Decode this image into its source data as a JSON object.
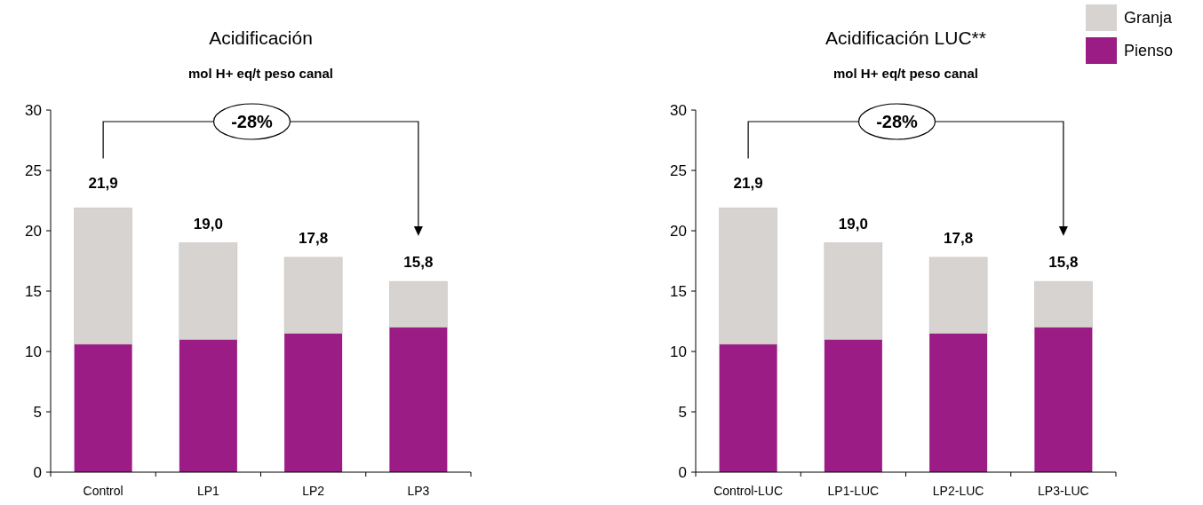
{
  "chart_data": [
    {
      "type": "bar",
      "title": "Acidificación",
      "subtitle": "mol H+ eq/t peso canal",
      "categories": [
        "Control",
        "LP1",
        "LP2",
        "LP3"
      ],
      "stacked": true,
      "series": [
        {
          "color": "#9b1c84",
          "values": [
            10.6,
            11.0,
            11.5,
            12.0
          ]
        },
        {
          "color": "#d6d3d0",
          "values": [
            11.3,
            8.0,
            6.3,
            3.8
          ]
        }
      ],
      "totals": [
        "21,9",
        "19,0",
        "17,8",
        "15,8"
      ],
      "ylim": [
        0,
        30
      ],
      "yticks": [
        0,
        5,
        10,
        15,
        20,
        25,
        30
      ],
      "grid": false,
      "legend": false,
      "annotations": [
        "-28%"
      ]
    },
    {
      "type": "bar",
      "title": "Acidificación LUC**",
      "subtitle": "mol H+ eq/t peso canal",
      "categories": [
        "Control-LUC",
        "LP1-LUC",
        "LP2-LUC",
        "LP3-LUC"
      ],
      "stacked": true,
      "series": [
        {
          "name": "Pienso",
          "color": "#9b1c84",
          "values": [
            10.6,
            11.0,
            11.5,
            12.0
          ]
        },
        {
          "name": "Granja",
          "color": "#d6d3d0",
          "values": [
            11.3,
            8.0,
            6.3,
            3.8
          ]
        }
      ],
      "totals": [
        "21,9",
        "19,0",
        "17,8",
        "15,8"
      ],
      "ylim": [
        0,
        30
      ],
      "yticks": [
        0,
        5,
        10,
        15,
        20,
        25,
        30
      ],
      "grid": false,
      "legend": "top right",
      "annotations": [
        "-28%"
      ]
    }
  ]
}
